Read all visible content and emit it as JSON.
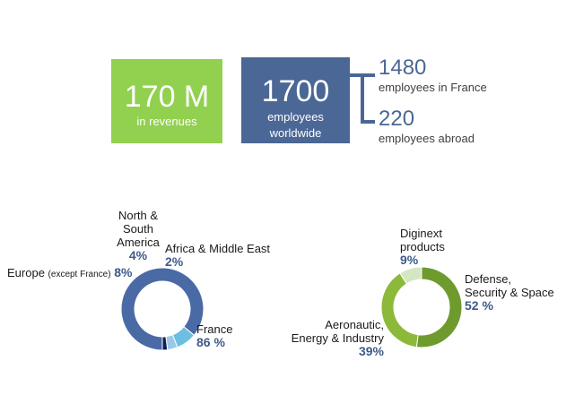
{
  "kpis": {
    "revenue": {
      "value": "170 M",
      "label": "in revenues",
      "color": "#92d050"
    },
    "employees": {
      "value": "1700",
      "label_line1": "employees",
      "label_line2": "worldwide",
      "color": "#4a6795"
    },
    "breakdown": [
      {
        "value": "1480",
        "label": "employees in France"
      },
      {
        "value": "220",
        "label": "employees abroad"
      }
    ]
  },
  "chart_data": [
    {
      "type": "pie",
      "donut": true,
      "slices": [
        {
          "name": "France",
          "value": 86,
          "pct_label": "86 %",
          "color": "#4a6aa5"
        },
        {
          "name_parts": [
            "Europe",
            "(except France)"
          ],
          "value": 8,
          "pct_label": "8%",
          "color": "#6cbfe0"
        },
        {
          "name_lines": [
            "North &",
            "South",
            "America"
          ],
          "value": 4,
          "pct_label": "4%",
          "color": "#9ac8e8"
        },
        {
          "name": "Africa & Middle East",
          "value": 2,
          "pct_label": "2%",
          "color": "#0e1f4d"
        }
      ]
    },
    {
      "type": "pie",
      "donut": true,
      "slices": [
        {
          "name_lines": [
            "Defense,",
            "Security & Space"
          ],
          "value": 52,
          "pct_label": "52 %",
          "color": "#6e9a2e"
        },
        {
          "name_lines": [
            "Aeronautic,",
            "Energy & Industry"
          ],
          "value": 39,
          "pct_label": "39%",
          "color": "#8cb93a"
        },
        {
          "name_lines": [
            "Diginext",
            "products"
          ],
          "value": 9,
          "pct_label": "9%",
          "color": "#d5e6c2"
        }
      ]
    }
  ]
}
